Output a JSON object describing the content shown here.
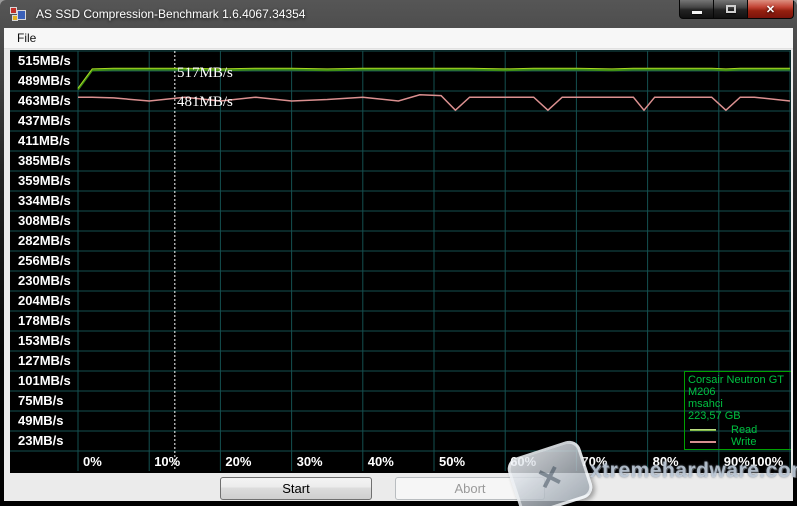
{
  "window": {
    "title": "AS SSD Compression-Benchmark 1.6.4067.34354"
  },
  "titlebar_controls": {
    "minimize": "minimize",
    "maximize": "maximize",
    "close": "close",
    "close_glyph": "✕"
  },
  "menubar": {
    "items": [
      "File"
    ]
  },
  "chart_data": {
    "type": "line",
    "title": "AS SSD Compression Benchmark",
    "xlabel": "",
    "ylabel": "",
    "x_tick_labels": [
      "0%",
      "10%",
      "20%",
      "30%",
      "40%",
      "50%",
      "60%",
      "70%",
      "80%",
      "90%",
      "100%"
    ],
    "y_tick_labels": [
      "515MB/s",
      "489MB/s",
      "463MB/s",
      "437MB/s",
      "411MB/s",
      "385MB/s",
      "359MB/s",
      "334MB/s",
      "308MB/s",
      "282MB/s",
      "256MB/s",
      "230MB/s",
      "204MB/s",
      "178MB/s",
      "153MB/s",
      "127MB/s",
      "101MB/s",
      "75MB/s",
      "49MB/s",
      "23MB/s"
    ],
    "y_axis_mbps": [
      515,
      489,
      463,
      437,
      411,
      385,
      359,
      334,
      308,
      282,
      256,
      230,
      204,
      178,
      153,
      127,
      101,
      75,
      49,
      23
    ],
    "row_step_mbps": 26,
    "x_percent": [
      0,
      2,
      5,
      10,
      15,
      20,
      25,
      30,
      35,
      40,
      45,
      48,
      51,
      53,
      55,
      60,
      64,
      66,
      68,
      70,
      75,
      78,
      79.5,
      81,
      85,
      89,
      91,
      93,
      95,
      100
    ],
    "series": [
      {
        "name": "Read",
        "color": "#3f8f14",
        "highlight": "#a8d822",
        "value_label": "517MB/s",
        "values_mbps": [
          491,
          516,
          517,
          517,
          517,
          516,
          517,
          517,
          516,
          517,
          517,
          517,
          517,
          517,
          517,
          516,
          517,
          517,
          517,
          517,
          516,
          517,
          517,
          517,
          517,
          517,
          516,
          517,
          517,
          517
        ]
      },
      {
        "name": "Write",
        "color": "#db9090",
        "value_label": "481MB/s",
        "values_mbps": [
          481,
          481,
          480,
          476,
          481,
          476,
          481,
          476,
          478,
          481,
          476,
          484,
          483,
          464,
          481,
          481,
          481,
          464,
          481,
          481,
          481,
          481,
          464,
          481,
          481,
          481,
          464,
          481,
          481,
          476
        ]
      }
    ],
    "cursor_percent": 13.6,
    "legend": {
      "device": [
        "Corsair Neutron GT",
        "M206",
        "msahci",
        "223,57 GB"
      ],
      "entries": [
        "Read",
        "Write"
      ]
    },
    "colors": {
      "background": "#000000",
      "grid": "#155050",
      "axis_text": "#ffffff",
      "legend_text": "#00c040",
      "legend_border": "#00a000",
      "cursor": "#ffffff"
    },
    "grid": "on",
    "legend_position": "bottom-right"
  },
  "buttons": {
    "start": "Start",
    "abort": "Abort"
  },
  "watermark": {
    "text": "xtremehardware.com",
    "logo_glyph": "✕"
  }
}
